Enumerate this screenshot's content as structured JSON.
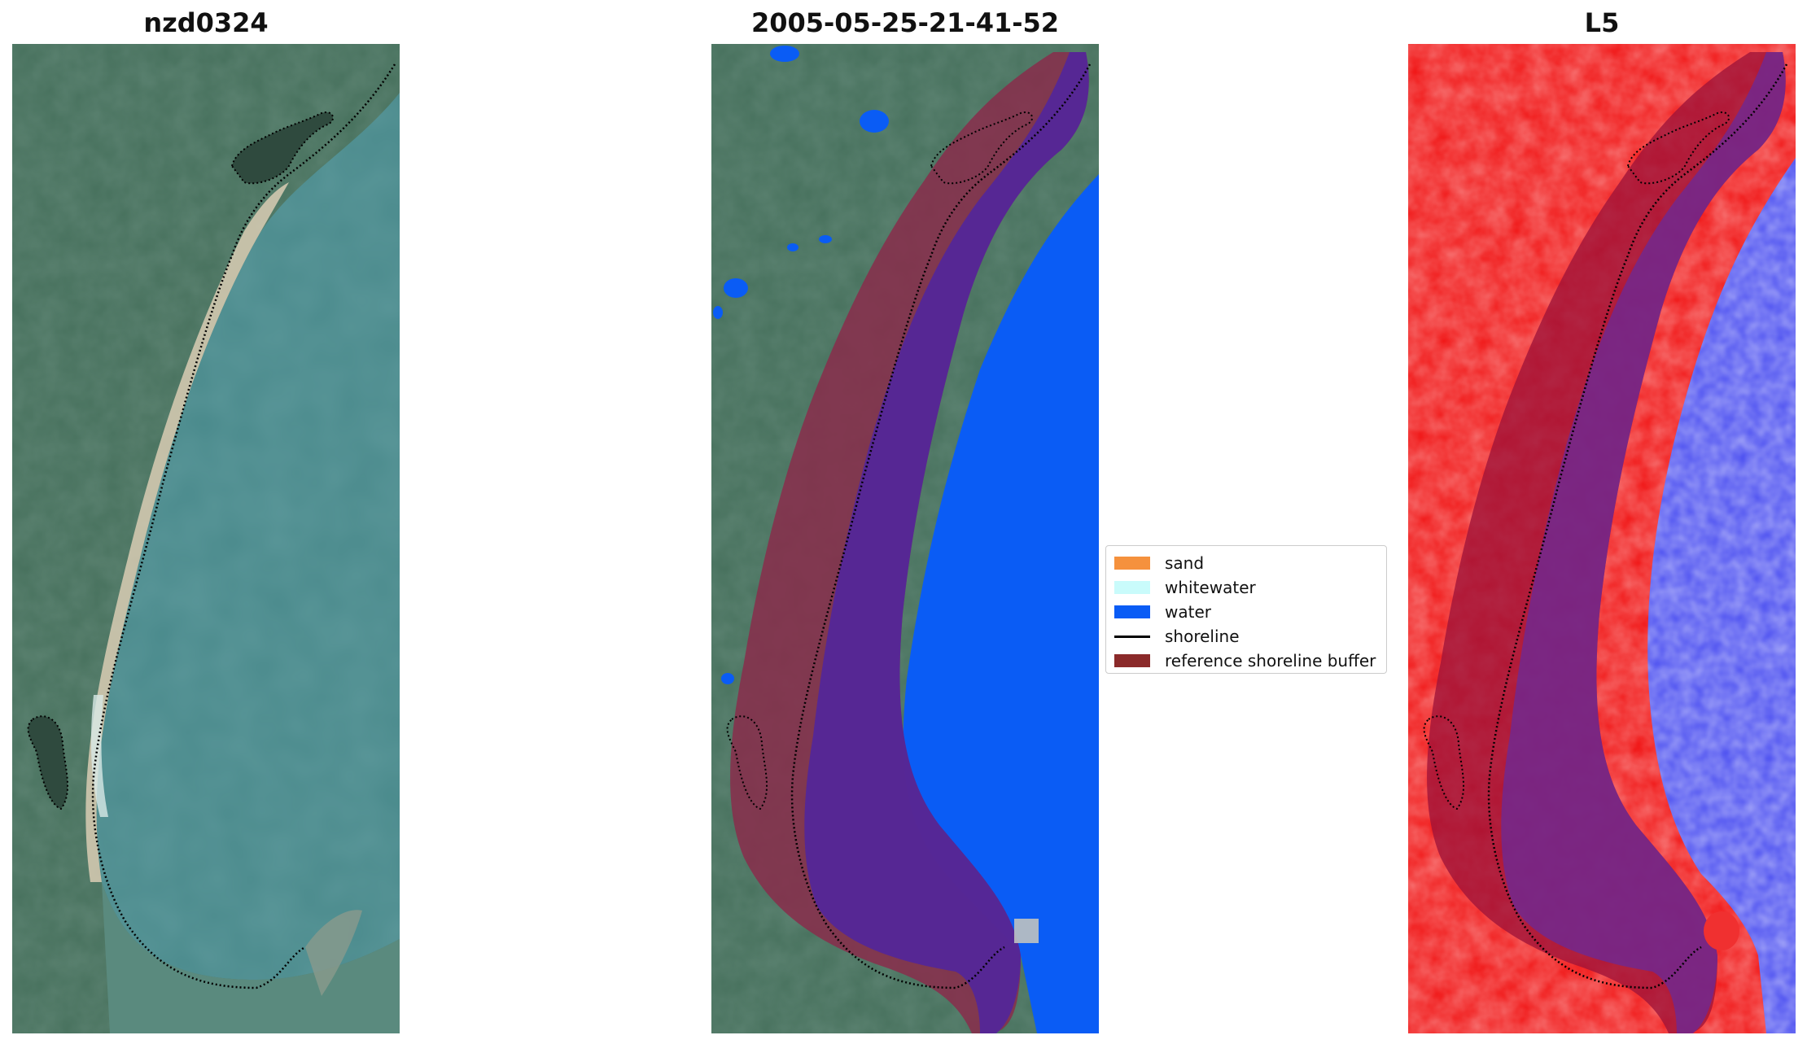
{
  "panels": [
    {
      "title": "nzd0324"
    },
    {
      "title": "2005-05-25-21-41-52"
    },
    {
      "title": "L5"
    }
  ],
  "legend": {
    "items": [
      {
        "label": "sand",
        "color": "#f5913d"
      },
      {
        "label": "whitewater",
        "color": "#c9fbfb"
      },
      {
        "label": "water",
        "color": "#0a5cf5"
      },
      {
        "label": "shoreline",
        "color": "#000000"
      },
      {
        "label": "reference shoreline buffer",
        "color": "#8b2a2a"
      }
    ]
  },
  "colors": {
    "land_vegetation": "#3f6e5a",
    "sea": "#4a8a8c",
    "beach_sand": "#d9cdb4",
    "index_land": "#f01010",
    "index_water": "#4a4ef0"
  }
}
